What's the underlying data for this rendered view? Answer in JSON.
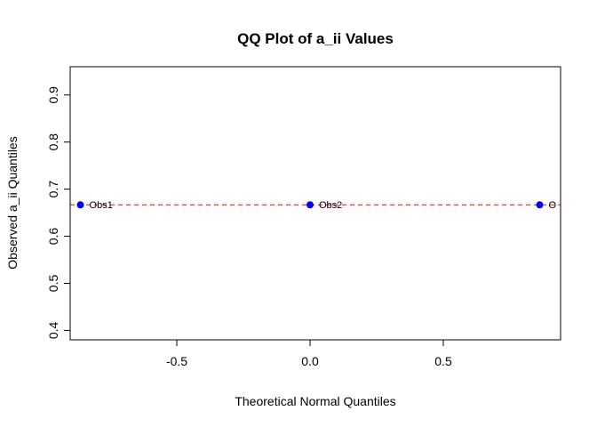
{
  "chart_data": {
    "type": "scatter",
    "title": "QQ Plot of a_ii Values",
    "xlabel": "Theoretical Normal Quantiles",
    "ylabel": "Observed a_ii Quantiles",
    "xlim": [
      -0.9,
      0.94
    ],
    "ylim": [
      0.38,
      0.96
    ],
    "x_ticks": [
      -0.5,
      0.0,
      0.5
    ],
    "x_tick_labels": [
      "-0.5",
      "0.0",
      "0.5"
    ],
    "y_ticks": [
      0.4,
      0.5,
      0.6,
      0.7,
      0.8,
      0.9
    ],
    "y_tick_labels": [
      "0.4",
      "0.5",
      "0.6",
      "0.7",
      "0.8",
      "0.9"
    ],
    "points": [
      {
        "label": "Obs1",
        "x": -0.8616,
        "y": 0.6667
      },
      {
        "label": "Obs2",
        "x": 0.0,
        "y": 0.6667
      },
      {
        "label": "O",
        "x": 0.8616,
        "y": 0.6667
      }
    ],
    "reference_line": {
      "y": 0.6667,
      "style": "dashed",
      "color": "#ff0000"
    },
    "point_color": "#0000ff",
    "grid": false
  }
}
